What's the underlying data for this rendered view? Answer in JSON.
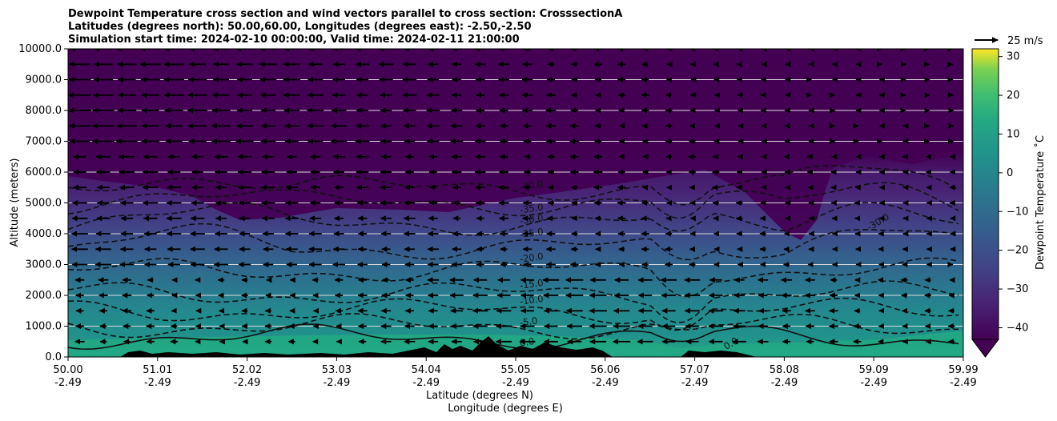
{
  "chart_data": {
    "type": "heatmap",
    "title_lines": [
      "Dewpoint Temperature cross section and wind vectors parallel to cross section: CrosssectionA",
      "Latitudes (degrees north): 50.00,60.00, Longitudes (degrees east): -2.50,-2.50",
      "Simulation start time: 2024-02-10 00:00:00, Valid time: 2024-02-11 21:00:00"
    ],
    "xlabel": "Latitude (degrees N)",
    "xlabel2": "Longitude (degrees E)",
    "ylabel": "Altitude (meters)",
    "colorbar_label": "Dewpoint Temperature $^\\circ$C",
    "colorbar_label_text": "Dewpoint Temperature ˚C",
    "vector_key_label": "25 m/s",
    "x_ticks": [
      {
        "lat": "50.00",
        "lon": "-2.49"
      },
      {
        "lat": "51.01",
        "lon": "-2.49"
      },
      {
        "lat": "52.02",
        "lon": "-2.49"
      },
      {
        "lat": "53.03",
        "lon": "-2.49"
      },
      {
        "lat": "54.04",
        "lon": "-2.49"
      },
      {
        "lat": "55.05",
        "lon": "-2.49"
      },
      {
        "lat": "56.06",
        "lon": "-2.49"
      },
      {
        "lat": "57.07",
        "lon": "-2.49"
      },
      {
        "lat": "58.08",
        "lon": "-2.49"
      },
      {
        "lat": "59.09",
        "lon": "-2.49"
      },
      {
        "lat": "59.99",
        "lon": "-2.49"
      }
    ],
    "y_ticks": [
      "0.0",
      "1000.0",
      "2000.0",
      "3000.0",
      "4000.0",
      "5000.0",
      "6000.0",
      "7000.0",
      "8000.0",
      "9000.0",
      "10000.0"
    ],
    "y_range": [
      0,
      10000
    ],
    "colorbar_ticks": [
      "-40",
      "-30",
      "-20",
      "-10",
      "0",
      "10",
      "20",
      "30"
    ],
    "colorbar_range": [
      -43,
      32
    ],
    "colormap": "viridis",
    "grid": "horizontal",
    "contour_levels": [
      {
        "label": "-40.0",
        "solid": false,
        "alt": 5500
      },
      {
        "label": "-35.0",
        "solid": false,
        "alt": 5000
      },
      {
        "label": "-30.0",
        "solid": false,
        "alt": 4350
      },
      {
        "label": "-25.0",
        "solid": false,
        "alt": 3550
      },
      {
        "label": "-20.0",
        "solid": false,
        "alt": 2800
      },
      {
        "label": "-15.0",
        "solid": false,
        "alt": 2050
      },
      {
        "label": "-10.0",
        "solid": false,
        "alt": 1500
      },
      {
        "label": "-5.0",
        "solid": false,
        "alt": 1000
      },
      {
        "label": "0.0",
        "solid": true,
        "alt": 650
      }
    ],
    "extra_contour_labels": [
      {
        "label": "0.0",
        "x_frac": 0.735,
        "alt": 230
      },
      {
        "label": "-30.0",
        "x_frac": 0.895,
        "alt": 4100
      }
    ]
  }
}
